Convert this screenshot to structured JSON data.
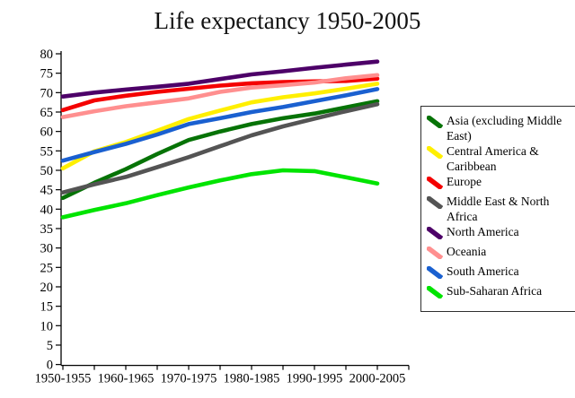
{
  "title": "Life expectancy 1950-2005",
  "chart_data": {
    "type": "line",
    "title": "Life expectancy 1950-2005",
    "xlabel": "",
    "ylabel": "",
    "ylim": [
      0,
      80
    ],
    "y_tick_step": 5,
    "y_ticks": [
      0,
      5,
      10,
      15,
      20,
      25,
      30,
      35,
      40,
      45,
      50,
      55,
      60,
      65,
      70,
      75,
      80
    ],
    "grid": false,
    "legend_position": "right",
    "categories": [
      "1950-1955",
      "1955-1960",
      "1960-1965",
      "1965-1970",
      "1970-1975",
      "1975-1980",
      "1980-1985",
      "1985-1990",
      "1990-1995",
      "1995-2000",
      "2000-2005"
    ],
    "x_tick_labels_shown": [
      "1950-1955",
      "1960-1965",
      "1970-1975",
      "1980-1985",
      "1990-1995",
      "2000-2005"
    ],
    "series": [
      {
        "name": "Asia (excluding Middle East)",
        "color": "#067306",
        "values": [
          42.9,
          46.8,
          50.3,
          54.2,
          57.8,
          60.0,
          61.9,
          63.4,
          64.6,
          66.2,
          67.8
        ]
      },
      {
        "name": "Central America & Caribbean",
        "color": "#ffef00",
        "values": [
          50.5,
          54.9,
          57.3,
          60.2,
          63.2,
          65.4,
          67.5,
          68.8,
          69.8,
          71.0,
          72.3
        ]
      },
      {
        "name": "Europe",
        "color": "#f40000",
        "values": [
          65.5,
          68.0,
          69.2,
          70.2,
          71.0,
          71.8,
          72.4,
          72.7,
          72.9,
          73.0,
          73.6
        ]
      },
      {
        "name": "Middle East & North Africa",
        "color": "#545454",
        "values": [
          44.3,
          46.4,
          48.3,
          50.8,
          53.4,
          56.2,
          59.0,
          61.3,
          63.3,
          65.2,
          67.0
        ]
      },
      {
        "name": "North America",
        "color": "#4d0068",
        "values": [
          69.0,
          70.0,
          70.8,
          71.5,
          72.3,
          73.5,
          74.7,
          75.5,
          76.4,
          77.2,
          78.0
        ]
      },
      {
        "name": "Oceania",
        "color": "#ff8f8f",
        "values": [
          63.7,
          65.2,
          66.5,
          67.5,
          68.5,
          70.2,
          71.3,
          71.9,
          72.6,
          73.7,
          74.5
        ]
      },
      {
        "name": "South America",
        "color": "#1a60d0",
        "values": [
          52.5,
          54.7,
          56.8,
          59.2,
          61.9,
          63.4,
          65.0,
          66.3,
          67.8,
          69.3,
          70.9
        ]
      },
      {
        "name": "Sub-Saharan Africa",
        "color": "#00e400",
        "values": [
          37.9,
          39.8,
          41.5,
          43.6,
          45.6,
          47.4,
          49.0,
          50.0,
          49.8,
          48.2,
          46.6
        ]
      }
    ]
  }
}
